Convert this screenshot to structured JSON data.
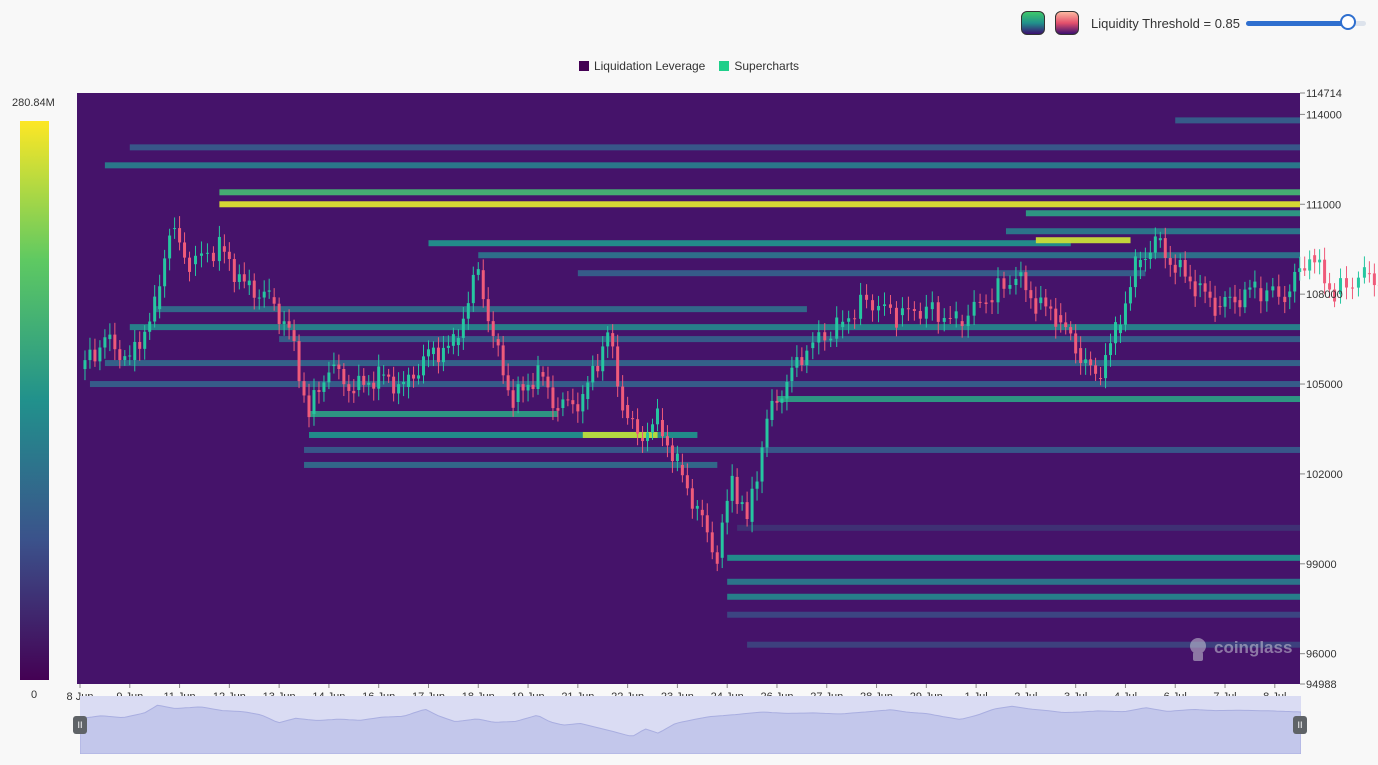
{
  "controls": {
    "threshold_label": "Liquidity Threshold = 0.85",
    "threshold_value": 0.85,
    "palettes": [
      "viridis",
      "magma"
    ]
  },
  "legend": [
    {
      "name": "Liquidation Leverage",
      "color": "#440154"
    },
    {
      "name": "Supercharts",
      "color": "#1fcf8a"
    }
  ],
  "colorbar": {
    "max_label": "280.84M",
    "min_label": "0"
  },
  "watermark": "coinglass",
  "chart_data": {
    "type": "heatmap",
    "x_tick_labels": [
      "8 Jun",
      "9 Jun",
      "11 Jun",
      "12 Jun",
      "13 Jun",
      "14 Jun",
      "16 Jun",
      "17 Jun",
      "18 Jun",
      "19 Jun",
      "21 Jun",
      "22 Jun",
      "23 Jun",
      "24 Jun",
      "26 Jun",
      "27 Jun",
      "28 Jun",
      "29 Jun",
      "1 Jul",
      "2 Jul",
      "3 Jul",
      "4 Jul",
      "6 Jul",
      "7 Jul",
      "8 Jul"
    ],
    "y_ticks": [
      94988,
      96000,
      99000,
      102000,
      105000,
      108000,
      111000,
      114000,
      114714
    ],
    "ylim": [
      94988,
      114714
    ],
    "color_range": [
      0,
      280840000
    ],
    "price_path": [
      [
        0,
        105500
      ],
      [
        0.5,
        106500
      ],
      [
        1,
        105800
      ],
      [
        1.5,
        107500
      ],
      [
        1.8,
        110200
      ],
      [
        2.2,
        109000
      ],
      [
        2.8,
        109600
      ],
      [
        3.3,
        108300
      ],
      [
        3.8,
        107900
      ],
      [
        4.2,
        106800
      ],
      [
        4.6,
        104000
      ],
      [
        5,
        105600
      ],
      [
        5.5,
        104800
      ],
      [
        6,
        105300
      ],
      [
        6.5,
        104900
      ],
      [
        7,
        106000
      ],
      [
        7.5,
        106300
      ],
      [
        8.0,
        108800
      ],
      [
        8.3,
        106500
      ],
      [
        8.7,
        104400
      ],
      [
        9.2,
        105400
      ],
      [
        9.6,
        104200
      ],
      [
        10.1,
        104500
      ],
      [
        10.6,
        106700
      ],
      [
        10.9,
        104300
      ],
      [
        11.2,
        103200
      ],
      [
        11.6,
        103800
      ],
      [
        12.0,
        102300
      ],
      [
        12.4,
        100800
      ],
      [
        12.8,
        99200
      ],
      [
        13.1,
        101900
      ],
      [
        13.4,
        100400
      ],
      [
        13.8,
        103800
      ],
      [
        14.2,
        105100
      ],
      [
        14.6,
        106200
      ],
      [
        15.2,
        106900
      ],
      [
        15.8,
        107800
      ],
      [
        16.4,
        107300
      ],
      [
        17.0,
        107500
      ],
      [
        17.6,
        107100
      ],
      [
        18.2,
        107800
      ],
      [
        18.8,
        108600
      ],
      [
        19.2,
        107700
      ],
      [
        19.6,
        107300
      ],
      [
        20.0,
        106200
      ],
      [
        20.4,
        105200
      ],
      [
        20.8,
        106700
      ],
      [
        21.2,
        108900
      ],
      [
        21.6,
        109800
      ],
      [
        22.0,
        108900
      ],
      [
        22.4,
        108300
      ],
      [
        22.8,
        107600
      ],
      [
        23.2,
        107800
      ],
      [
        23.6,
        108200
      ],
      [
        24.2,
        107900
      ],
      [
        24.7,
        109300
      ],
      [
        25.2,
        108000
      ],
      [
        25.8,
        108700
      ],
      [
        26.3,
        108300
      ],
      [
        26.9,
        108400
      ],
      [
        27.6,
        108200
      ],
      [
        28.3,
        107800
      ]
    ],
    "liquidity_bands": [
      {
        "price": 111000,
        "from": 2.8,
        "to": 28.3,
        "intensity": 0.95
      },
      {
        "price": 111400,
        "from": 2.8,
        "to": 28.3,
        "intensity": 0.65
      },
      {
        "price": 110700,
        "from": 19,
        "to": 28.3,
        "intensity": 0.55
      },
      {
        "price": 110100,
        "from": 18.6,
        "to": 28.3,
        "intensity": 0.4
      },
      {
        "price": 112300,
        "from": 0.5,
        "to": 28.3,
        "intensity": 0.42
      },
      {
        "price": 112900,
        "from": 1,
        "to": 28.3,
        "intensity": 0.28
      },
      {
        "price": 109700,
        "from": 7,
        "to": 19.5,
        "intensity": 0.5
      },
      {
        "price": 109800,
        "from": 19.2,
        "to": 20.7,
        "intensity": 0.92
      },
      {
        "price": 109300,
        "from": 8,
        "to": 28.3,
        "intensity": 0.38
      },
      {
        "price": 108700,
        "from": 10,
        "to": 21,
        "intensity": 0.3
      },
      {
        "price": 107500,
        "from": 1.5,
        "to": 14.2,
        "intensity": 0.35
      },
      {
        "price": 106900,
        "from": 1,
        "to": 28.3,
        "intensity": 0.45
      },
      {
        "price": 106500,
        "from": 4,
        "to": 28.3,
        "intensity": 0.3
      },
      {
        "price": 105700,
        "from": 0.5,
        "to": 28.3,
        "intensity": 0.32
      },
      {
        "price": 105000,
        "from": 0.2,
        "to": 28.3,
        "intensity": 0.3
      },
      {
        "price": 104500,
        "from": 14,
        "to": 28.3,
        "intensity": 0.55
      },
      {
        "price": 104000,
        "from": 4.6,
        "to": 9.2,
        "intensity": 0.55
      },
      {
        "price": 103300,
        "from": 4.6,
        "to": 12.0,
        "intensity": 0.5
      },
      {
        "price": 103300,
        "from": 10.1,
        "to": 11.2,
        "intensity": 0.9
      },
      {
        "price": 102800,
        "from": 4.5,
        "to": 28.3,
        "intensity": 0.28
      },
      {
        "price": 102300,
        "from": 4.5,
        "to": 12.4,
        "intensity": 0.35
      },
      {
        "price": 99200,
        "from": 13.0,
        "to": 28.3,
        "intensity": 0.5
      },
      {
        "price": 98400,
        "from": 13.0,
        "to": 28.3,
        "intensity": 0.4
      },
      {
        "price": 97900,
        "from": 13.0,
        "to": 28.3,
        "intensity": 0.45
      },
      {
        "price": 97300,
        "from": 13.0,
        "to": 28.3,
        "intensity": 0.22
      },
      {
        "price": 96300,
        "from": 13.4,
        "to": 28.3,
        "intensity": 0.2
      },
      {
        "price": 100200,
        "from": 13.2,
        "to": 28.3,
        "intensity": 0.15
      },
      {
        "price": 113800,
        "from": 22,
        "to": 28.3,
        "intensity": 0.3
      }
    ]
  }
}
